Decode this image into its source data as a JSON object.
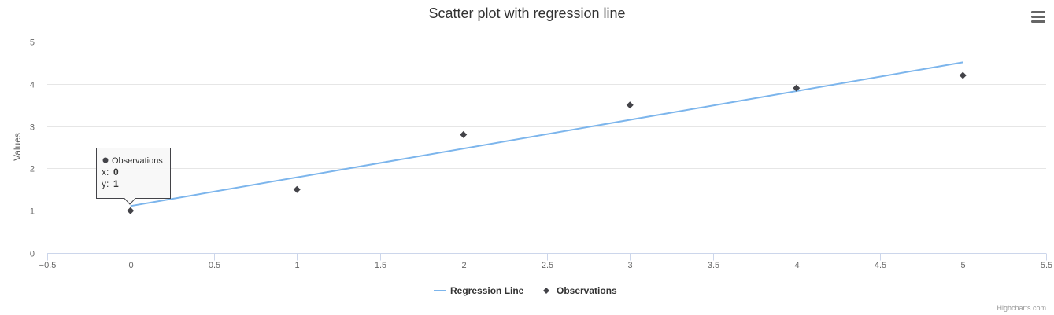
{
  "chart_data": {
    "type": "scatter",
    "title": "Scatter plot with regression line",
    "xlabel": "",
    "ylabel": "Values",
    "xlim": [
      -0.5,
      5.5
    ],
    "ylim": [
      0,
      5
    ],
    "x_ticks": [
      "−0.5",
      "0",
      "0.5",
      "1",
      "1.5",
      "2",
      "2.5",
      "3",
      "3.5",
      "4",
      "4.5",
      "5",
      "5.5"
    ],
    "y_ticks": [
      "0",
      "1",
      "2",
      "3",
      "4",
      "5"
    ],
    "grid": "horizontal",
    "legend_position": "bottom-center",
    "series": [
      {
        "name": "Regression Line",
        "kind": "line",
        "color": "#7cb5ec",
        "x": [
          0,
          5
        ],
        "y": [
          1.11,
          4.51
        ]
      },
      {
        "name": "Observations",
        "kind": "scatter",
        "marker": "diamond",
        "color": "#434348",
        "x": [
          0,
          1,
          2,
          3,
          4,
          5
        ],
        "y": [
          1,
          1.5,
          2.8,
          3.5,
          3.9,
          4.2
        ]
      }
    ]
  },
  "tooltip": {
    "series_name": "Observations",
    "x_label": "x:",
    "x_value": "0",
    "y_label": "y:",
    "y_value": "1"
  },
  "menu_icon": "hamburger-menu-icon",
  "credits": "Highcharts.com"
}
